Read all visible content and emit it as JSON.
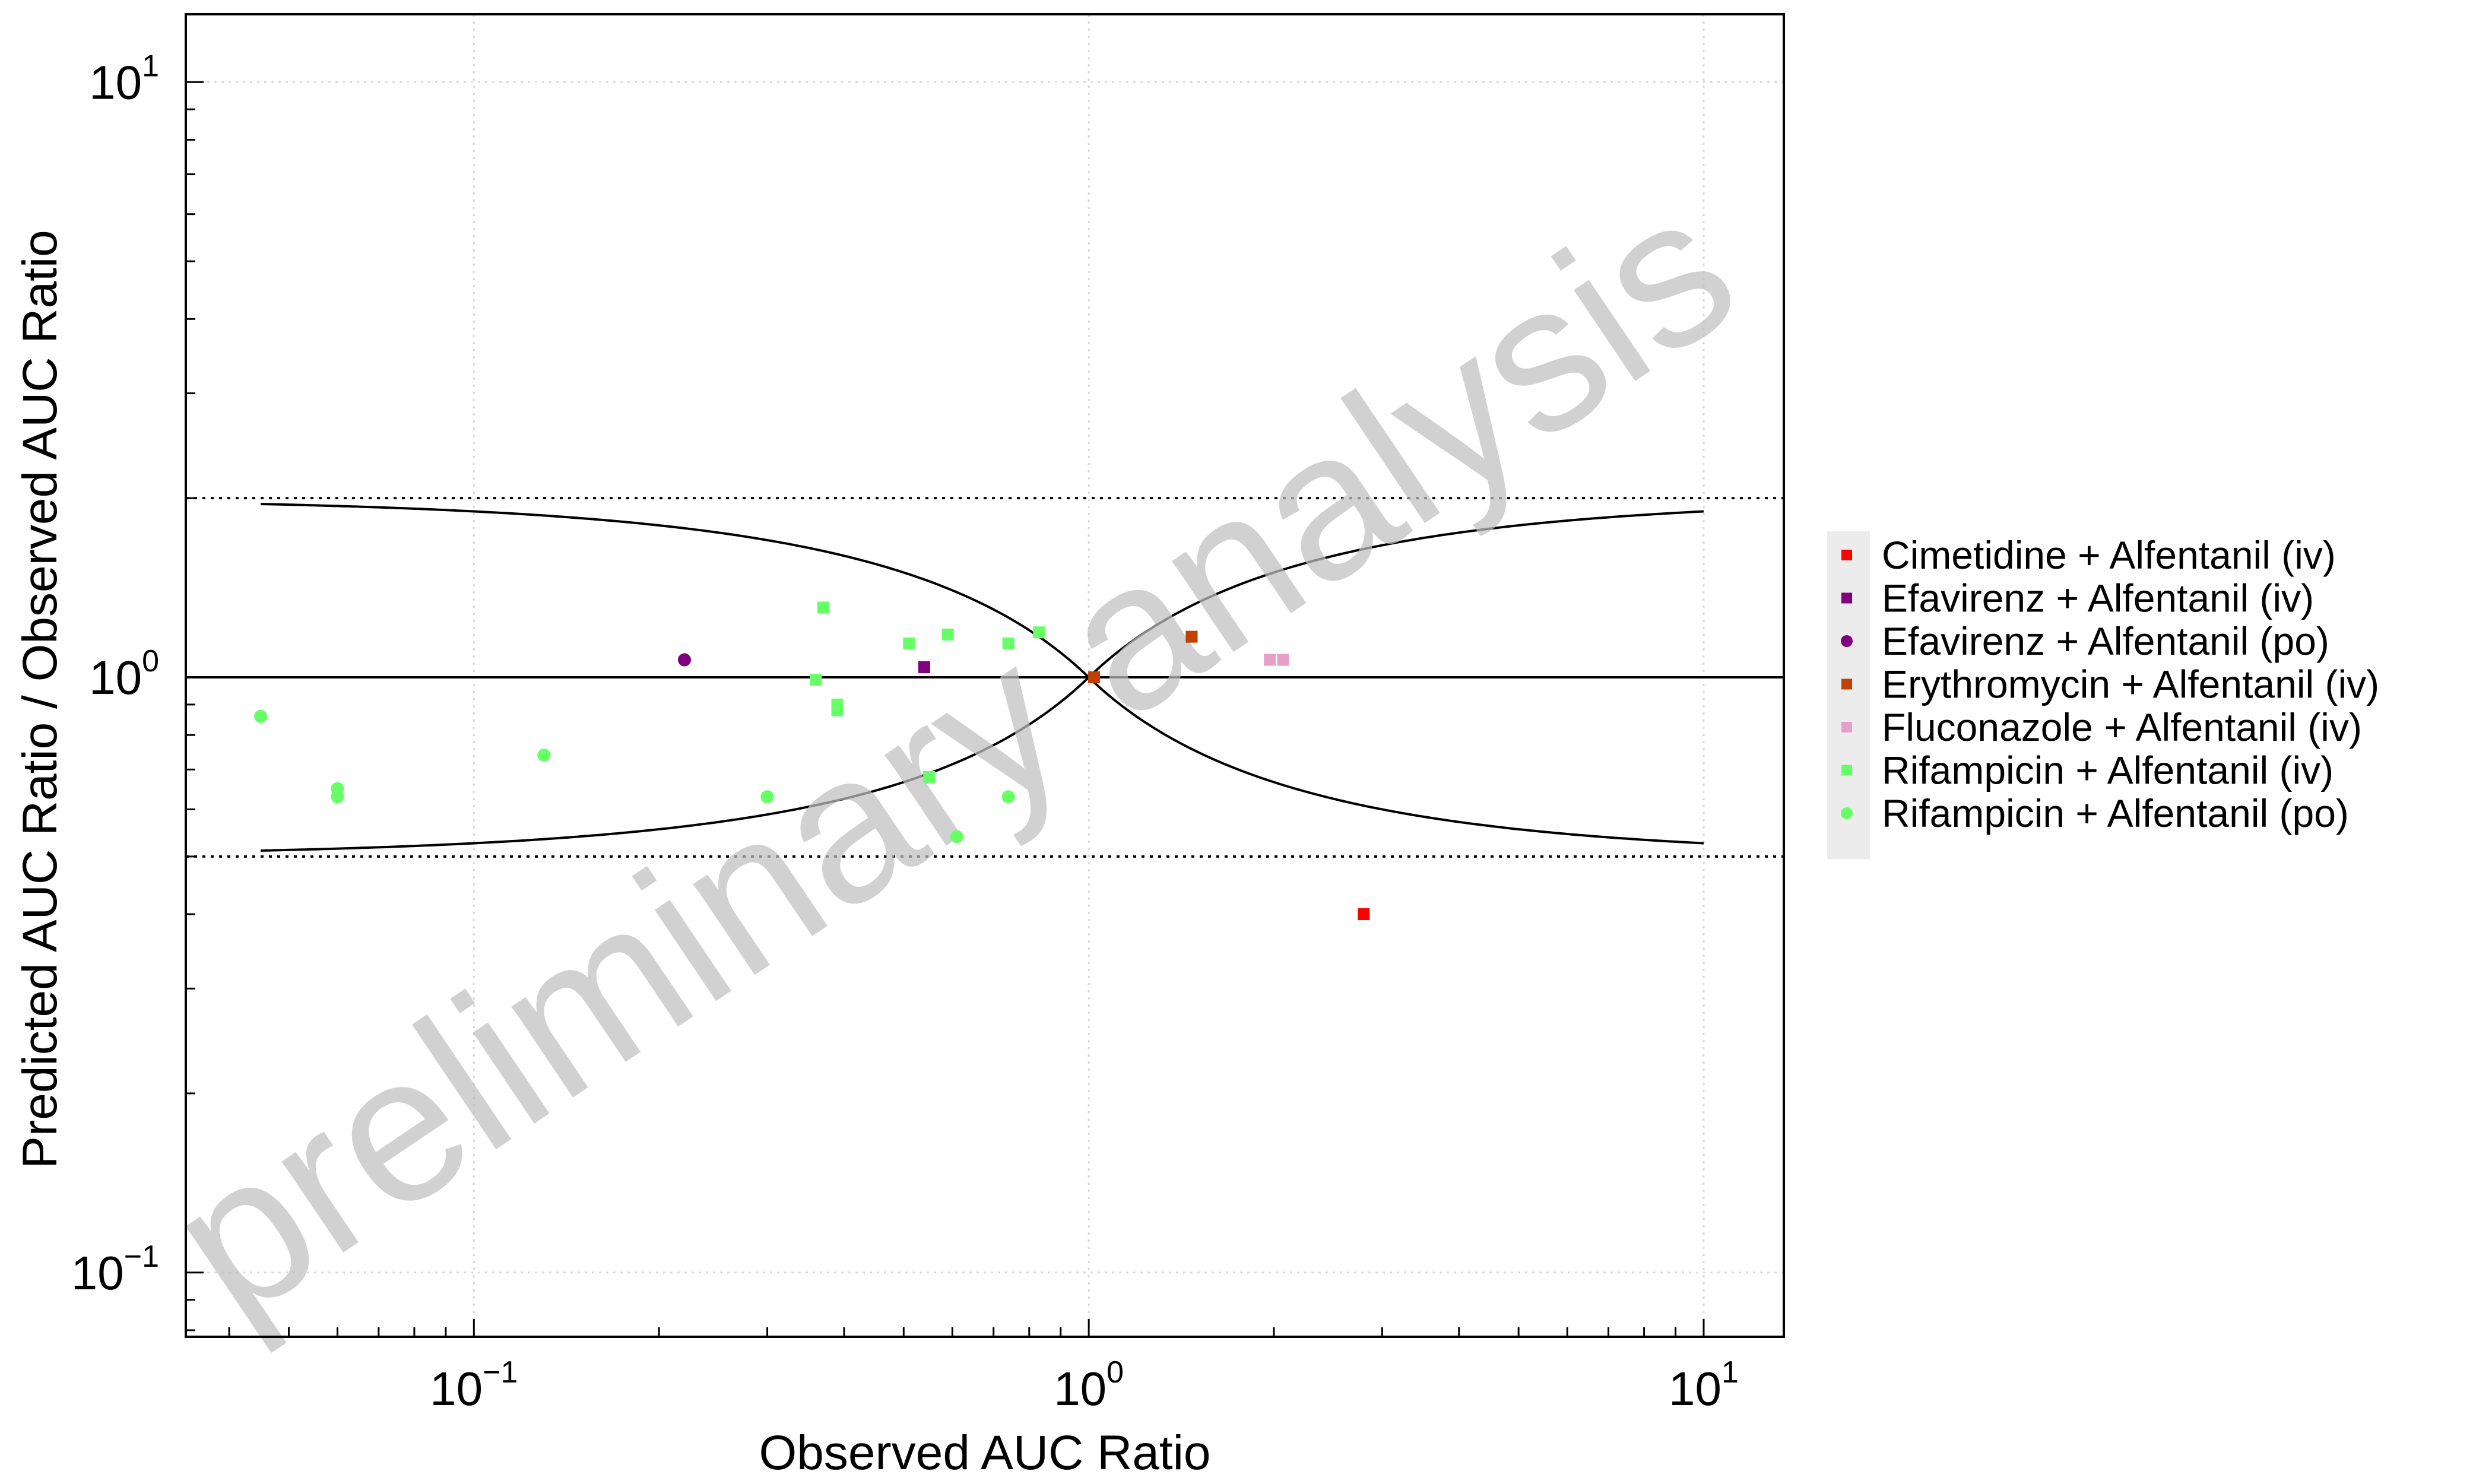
{
  "chart_data": {
    "type": "scatter",
    "title": "",
    "xlabel": "Observed AUC Ratio",
    "ylabel": "Predicted AUC Ratio / Observed AUC Ratio",
    "xscale": "log",
    "yscale": "log",
    "xlim": [
      0.034,
      13.5
    ],
    "ylim": [
      0.078,
      13.0
    ],
    "xticks": [
      {
        "base": "10",
        "exp": "−1",
        "value": 0.1
      },
      {
        "base": "10",
        "exp": "0",
        "value": 1
      },
      {
        "base": "10",
        "exp": "1",
        "value": 10
      }
    ],
    "yticks": [
      {
        "base": "10",
        "exp": "−1",
        "value": 0.1
      },
      {
        "base": "10",
        "exp": "0",
        "value": 1
      },
      {
        "base": "10",
        "exp": "1",
        "value": 10
      }
    ],
    "grid": true,
    "legend_position": "right",
    "watermark": "preliminary analysis",
    "reference_lines": {
      "identity": 1.0,
      "twofold_upper": 2.0,
      "twofold_lower": 0.5,
      "guest_limit_range": [
        0.045,
        10.0
      ]
    },
    "series": [
      {
        "name": "Cimetidine + Alfentanil (iv)",
        "color": "#ff0000",
        "marker": "square",
        "points": [
          [
            2.8,
            0.4
          ]
        ]
      },
      {
        "name": "Efavirenz + Alfentanil (iv)",
        "color": "#800080",
        "marker": "square",
        "points": [
          [
            0.54,
            1.04
          ]
        ]
      },
      {
        "name": "Efavirenz + Alfentanil (po)",
        "color": "#800080",
        "marker": "circle",
        "points": [
          [
            0.22,
            1.07
          ]
        ]
      },
      {
        "name": "Erythromycin + Alfentanil (iv)",
        "color": "#c04000",
        "marker": "square",
        "points": [
          [
            1.47,
            1.17
          ],
          [
            1.02,
            1.0
          ]
        ]
      },
      {
        "name": "Fluconazole + Alfentanil (iv)",
        "color": "#e6a0c8",
        "marker": "square",
        "points": [
          [
            1.97,
            1.07
          ],
          [
            2.07,
            1.07
          ]
        ]
      },
      {
        "name": "Rifampicin + Alfentanil (iv)",
        "color": "#66ff66",
        "marker": "square",
        "points": [
          [
            0.37,
            1.31
          ],
          [
            0.36,
            0.99
          ],
          [
            0.39,
            0.9
          ],
          [
            0.39,
            0.88
          ],
          [
            0.51,
            1.14
          ],
          [
            0.59,
            1.18
          ],
          [
            0.74,
            1.14
          ],
          [
            0.83,
            1.19
          ],
          [
            0.55,
            0.68
          ]
        ]
      },
      {
        "name": "Rifampicin + Alfentanil (po)",
        "color": "#66ff66",
        "marker": "circle",
        "points": [
          [
            0.045,
            0.86
          ],
          [
            0.06,
            0.65
          ],
          [
            0.06,
            0.63
          ],
          [
            0.13,
            0.74
          ],
          [
            0.3,
            0.63
          ],
          [
            0.61,
            0.54
          ],
          [
            0.74,
            0.63
          ]
        ]
      }
    ]
  }
}
